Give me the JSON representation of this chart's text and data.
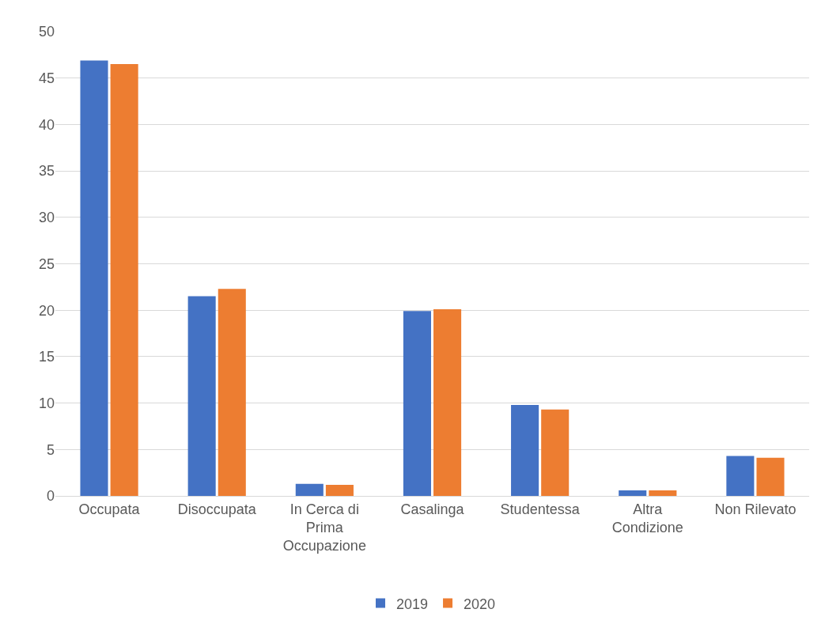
{
  "chart_data": {
    "type": "bar",
    "categories": [
      "Occupata",
      "Disoccupata",
      "In Cerca di Prima Occupazione",
      "Casalinga",
      "Studentessa",
      "Altra Condizione",
      "Non Rilevato"
    ],
    "series": [
      {
        "name": "2019",
        "color": "#4472c4",
        "values": [
          46.9,
          21.5,
          1.3,
          19.9,
          9.8,
          0.6,
          4.3
        ]
      },
      {
        "name": "2020",
        "color": "#ed7d31",
        "values": [
          46.5,
          22.3,
          1.2,
          20.1,
          9.3,
          0.6,
          4.1
        ]
      }
    ],
    "ylim": [
      0,
      50
    ],
    "yticks": [
      0,
      5,
      10,
      15,
      20,
      25,
      30,
      35,
      40,
      45,
      50
    ],
    "grid": "y",
    "legend": "bottom"
  }
}
